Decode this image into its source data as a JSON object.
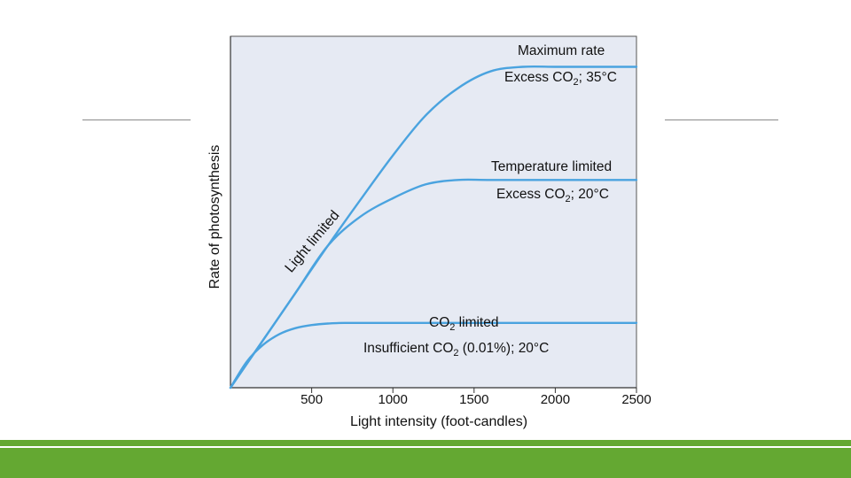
{
  "colors": {
    "plot_background": "#e6eaf3",
    "curve": "#4aa3df",
    "accent_green": "#64a832",
    "axis": "#333333"
  },
  "chart_data": {
    "type": "line",
    "xlabel": "Light intensity (foot-candles)",
    "ylabel": "Rate of photosynthesis",
    "xlim": [
      0,
      2500
    ],
    "x_ticks": [
      "500",
      "1000",
      "1500",
      "2000",
      "2500"
    ],
    "y_ticks": [],
    "grid": false,
    "annotation_diagonal": "Light limited",
    "series": [
      {
        "x": [
          0,
          200,
          400,
          600,
          800,
          1000,
          1200,
          1400,
          1600,
          1800,
          2000,
          2200,
          2500
        ],
        "y": [
          0,
          15.5,
          31,
          46.5,
          61.5,
          76,
          89,
          98,
          103.5,
          105,
          105,
          105,
          105
        ]
      },
      {
        "x": [
          0,
          200,
          400,
          600,
          800,
          1000,
          1200,
          1400,
          1600,
          2000,
          2500
        ],
        "y": [
          0,
          15.5,
          31,
          46.5,
          56,
          62,
          66.5,
          68,
          68,
          68,
          68
        ]
      },
      {
        "x": [
          0,
          100,
          200,
          300,
          400,
          500,
          600,
          700,
          1000,
          1500,
          2000,
          2500
        ],
        "y": [
          0,
          8.5,
          14,
          17.5,
          19.5,
          20.5,
          21,
          21.2,
          21.2,
          21.2,
          21.2,
          21.2
        ]
      }
    ]
  },
  "labels": {
    "max_title": "Maximum rate",
    "max_sub_pre": "Excess CO",
    "max_sub_sub": "2",
    "max_sub_post": "; 35°C",
    "temp_title": "Temperature limited",
    "temp_sub_pre": "Excess CO",
    "temp_sub_sub": "2",
    "temp_sub_post": "; 20°C",
    "co2_title_pre": "CO",
    "co2_title_sub": "2",
    "co2_title_post": " limited",
    "co2_sub_pre": "Insufficient CO",
    "co2_sub_sub": "2",
    "co2_sub_post": " (0.01%); 20°C"
  }
}
